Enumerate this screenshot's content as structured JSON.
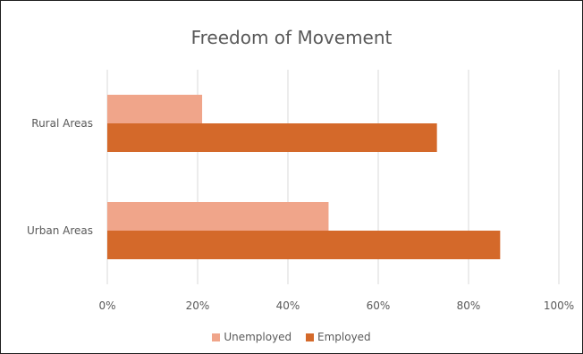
{
  "chart_data": {
    "type": "bar",
    "orientation": "horizontal",
    "title": "Freedom of Movement",
    "categories": [
      "Rural Areas",
      "Urban Areas"
    ],
    "series": [
      {
        "name": "Unemployed",
        "values": [
          21,
          49
        ],
        "color": "#f0a58a"
      },
      {
        "name": "Employed",
        "values": [
          73,
          87
        ],
        "color": "#d4692a"
      }
    ],
    "xlim": [
      0,
      100
    ],
    "x_ticks": [
      "0%",
      "20%",
      "40%",
      "60%",
      "80%",
      "100%"
    ],
    "grid": true,
    "legend_position": "bottom"
  }
}
